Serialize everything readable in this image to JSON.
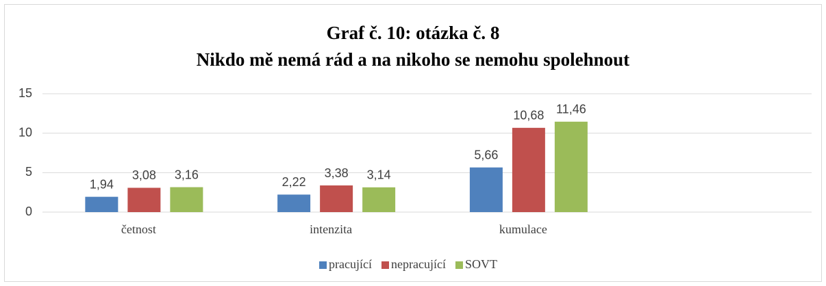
{
  "chart_data": {
    "type": "bar",
    "title": [
      "Graf č. 10: otázka č. 8",
      "Nikdo mě nemá rád a na nikoho se nemohu spolehnout"
    ],
    "categories": [
      "četnost",
      "intenzita",
      "kumulace",
      null
    ],
    "series": [
      {
        "name": "pracující",
        "color": "#4f81bd",
        "values": [
          1.94,
          2.22,
          5.66,
          null
        ],
        "value_labels": [
          "1,94",
          "2,22",
          "5,66",
          null
        ]
      },
      {
        "name": "nepracující",
        "color": "#c0504d",
        "values": [
          3.08,
          3.38,
          10.68,
          null
        ],
        "value_labels": [
          "3,08",
          "3,38",
          "10,68",
          null
        ]
      },
      {
        "name": "SOVT",
        "color": "#9bbb59",
        "values": [
          3.16,
          3.14,
          11.46,
          null
        ],
        "value_labels": [
          "3,16",
          "3,14",
          "11,46",
          null
        ]
      }
    ],
    "ylim": [
      0,
      15
    ],
    "yticks": [
      0,
      5,
      10,
      15
    ],
    "grid": true,
    "legend": "bottom"
  }
}
